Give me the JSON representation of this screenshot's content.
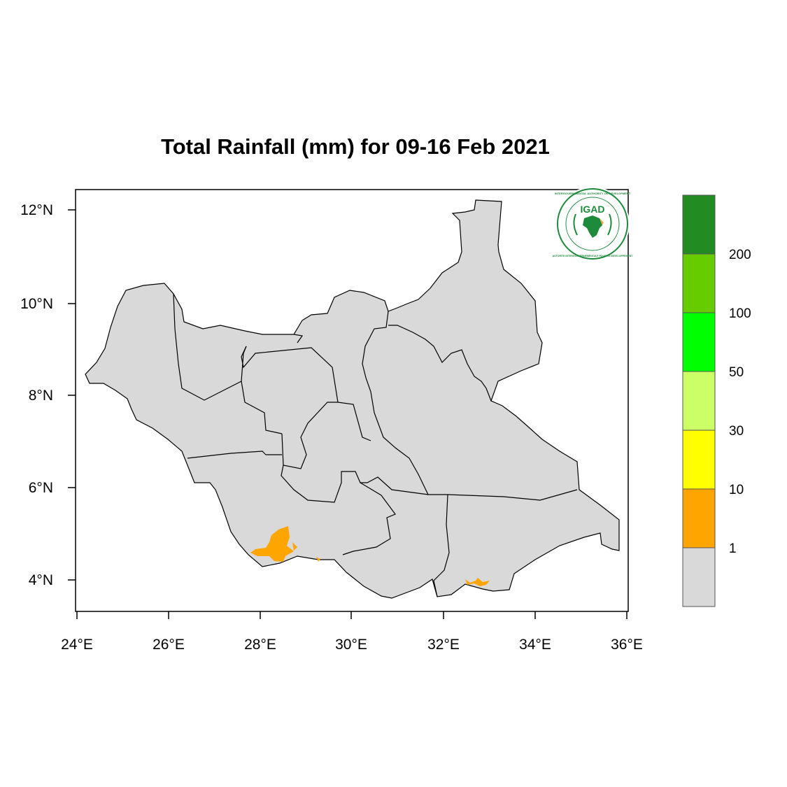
{
  "title": "Total Rainfall (mm) for 09-16 Feb 2021",
  "logo": {
    "acronym": "IGAD",
    "ring_top": "INTERGOVERNMENTAL AUTHORITY ON DEVELOPMENT",
    "ring_bottom": "AUTORITE INTERGOUVERNEMENTALE POUR LE DEVELOPPEMENT"
  },
  "axes": {
    "x_ticks": [
      "24°E",
      "26°E",
      "28°E",
      "30°E",
      "32°E",
      "34°E",
      "36°E"
    ],
    "y_ticks": [
      "12°N",
      "10°N",
      "8°N",
      "6°N",
      "4°N"
    ]
  },
  "legend": {
    "labels": [
      "1",
      "10",
      "30",
      "50",
      "100",
      "200"
    ],
    "colors": [
      "#d9d9d9",
      "#ffa500",
      "#ffff00",
      "#ccff66",
      "#00ff00",
      "#66cc00",
      "#228b22"
    ]
  },
  "colors": {
    "land": "#d9d9d9",
    "rain_1_10": "#ffa500",
    "border": "#000000"
  }
}
